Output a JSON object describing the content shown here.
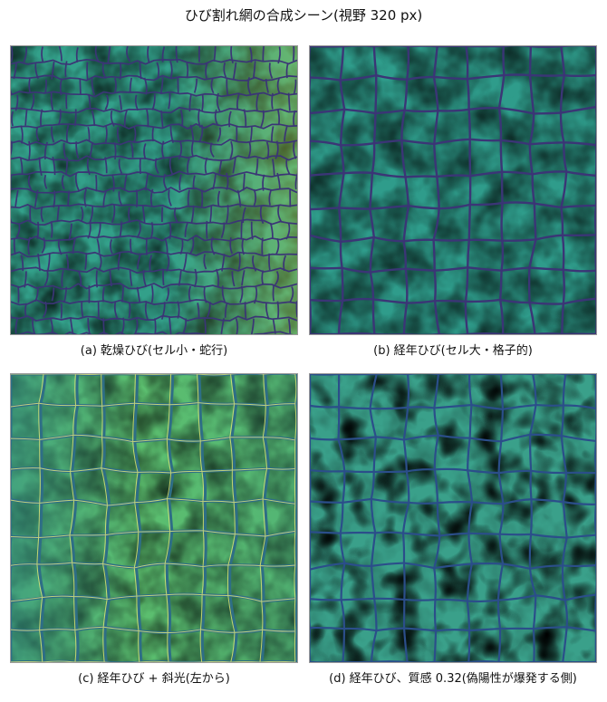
{
  "title": "ひび割れ網の合成シーン(視野 320 px)",
  "panels": [
    {
      "id": "a",
      "caption": "(a) 乾燥ひび(セル小・蛇行)"
    },
    {
      "id": "b",
      "caption": "(b) 経年ひび(セル大・格子的)"
    },
    {
      "id": "c",
      "caption": "(c) 経年ひび + 斜光(左から)"
    },
    {
      "id": "d",
      "caption": "(d) 経年ひび、質感 0.32(偽陽性が爆発する側)"
    }
  ],
  "colors": {
    "background_mid": "#3ba58a",
    "highlight": "#f2e33a",
    "crack": "#3b3576",
    "dark_blob": "#3d1f6e"
  }
}
